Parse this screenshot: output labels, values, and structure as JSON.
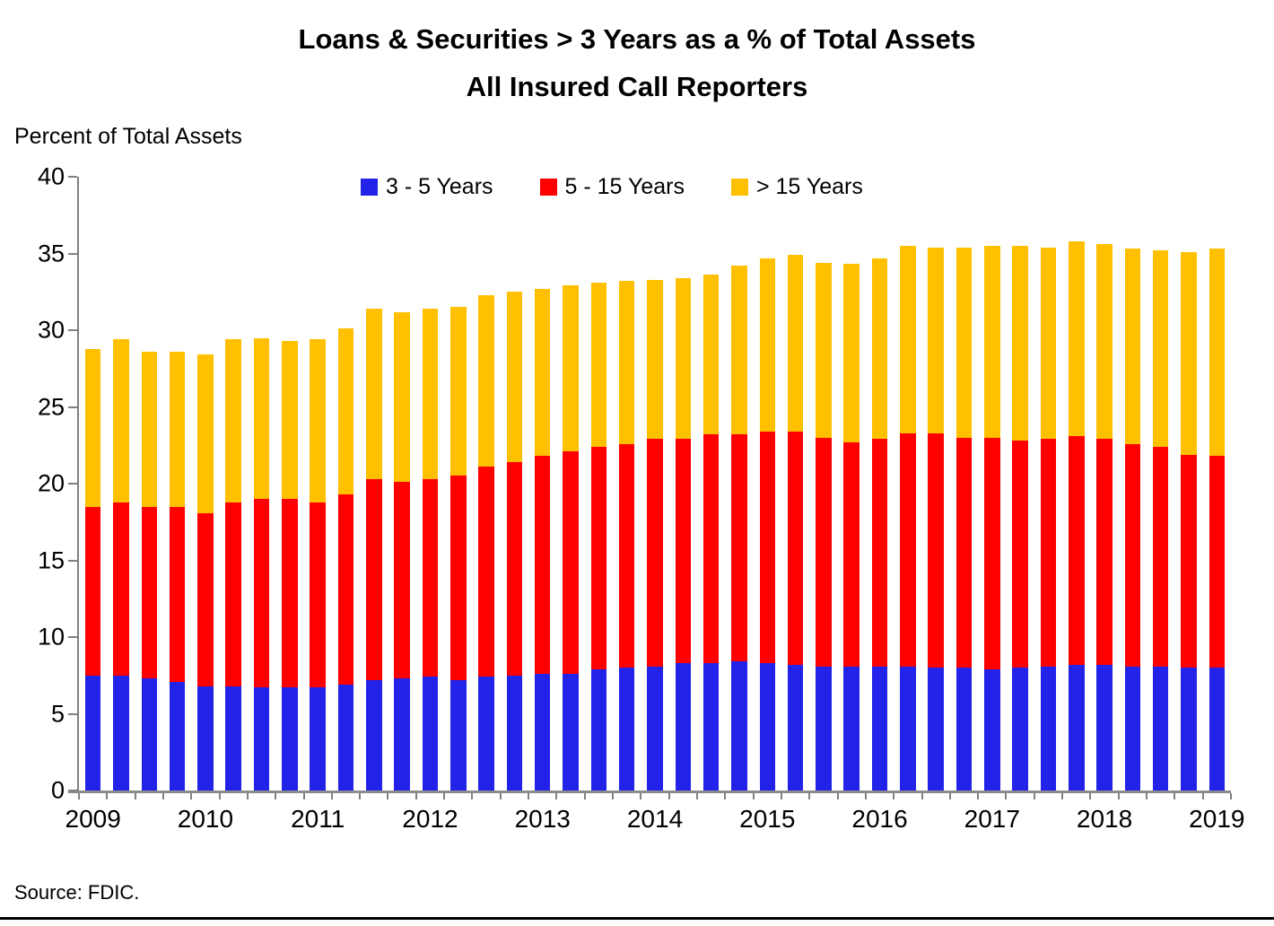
{
  "title": {
    "line1": "Loans & Securities > 3 Years as a % of Total Assets",
    "line2": "All Insured Call Reporters"
  },
  "y_axis_caption": "Percent of Total Assets",
  "source_note": "Source: FDIC.",
  "colors": {
    "blue": "#2222E8",
    "red": "#FF0000",
    "gold": "#FFC000",
    "axis_gray": "#808080"
  },
  "chart_data": {
    "type": "bar",
    "stacked": true,
    "title": "Loans & Securities > 3 Years as a % of Total Assets — All Insured Call Reporters",
    "xlabel": "",
    "ylabel": "Percent of Total Assets",
    "ylim": [
      0,
      40
    ],
    "y_ticks": [
      0,
      5,
      10,
      15,
      20,
      25,
      30,
      35,
      40
    ],
    "grid": false,
    "legend_position": "top",
    "x_year_labels": [
      "2009",
      "2010",
      "2011",
      "2012",
      "2013",
      "2014",
      "2015",
      "2016",
      "2017",
      "2018",
      "2019"
    ],
    "categories": [
      "2009 Q1",
      "2009 Q2",
      "2009 Q3",
      "2009 Q4",
      "2010 Q1",
      "2010 Q2",
      "2010 Q3",
      "2010 Q4",
      "2011 Q1",
      "2011 Q2",
      "2011 Q3",
      "2011 Q4",
      "2012 Q1",
      "2012 Q2",
      "2012 Q3",
      "2012 Q4",
      "2013 Q1",
      "2013 Q2",
      "2013 Q3",
      "2013 Q4",
      "2014 Q1",
      "2014 Q2",
      "2014 Q3",
      "2014 Q4",
      "2015 Q1",
      "2015 Q2",
      "2015 Q3",
      "2015 Q4",
      "2016 Q1",
      "2016 Q2",
      "2016 Q3",
      "2016 Q4",
      "2017 Q1",
      "2017 Q2",
      "2017 Q3",
      "2017 Q4",
      "2018 Q1",
      "2018 Q2",
      "2018 Q3",
      "2018 Q4",
      "2019 Q1"
    ],
    "series": [
      {
        "name": "3 - 5 Years",
        "color": "#2222E8",
        "values": [
          7.5,
          7.5,
          7.3,
          7.1,
          6.8,
          6.8,
          6.7,
          6.7,
          6.7,
          6.9,
          7.2,
          7.3,
          7.4,
          7.2,
          7.4,
          7.5,
          7.6,
          7.6,
          7.9,
          8.0,
          8.1,
          8.3,
          8.3,
          8.4,
          8.3,
          8.2,
          8.1,
          8.1,
          8.1,
          8.1,
          8.0,
          8.0,
          7.9,
          8.0,
          8.1,
          8.2,
          8.2,
          8.1,
          8.1,
          8.0,
          8.0
        ]
      },
      {
        "name": "5 - 15 Years",
        "color": "#FF0000",
        "values": [
          11.0,
          11.3,
          11.2,
          11.4,
          11.3,
          12.0,
          12.3,
          12.3,
          12.1,
          12.4,
          13.1,
          12.8,
          12.9,
          13.3,
          13.7,
          13.9,
          14.2,
          14.5,
          14.5,
          14.6,
          14.8,
          14.6,
          14.9,
          14.8,
          15.1,
          15.2,
          14.9,
          14.6,
          14.8,
          15.2,
          15.3,
          15.0,
          15.1,
          14.8,
          14.8,
          14.9,
          14.7,
          14.5,
          14.3,
          13.9,
          13.8
        ]
      },
      {
        "name": "> 15 Years",
        "color": "#FFC000",
        "values": [
          10.3,
          10.6,
          10.1,
          10.1,
          10.3,
          10.6,
          10.5,
          10.3,
          10.6,
          10.8,
          11.1,
          11.1,
          11.1,
          11.0,
          11.2,
          11.1,
          10.9,
          10.8,
          10.7,
          10.6,
          10.4,
          10.5,
          10.4,
          11.0,
          11.3,
          11.5,
          11.4,
          11.6,
          11.8,
          12.2,
          12.1,
          12.4,
          12.5,
          12.7,
          12.5,
          12.7,
          12.7,
          12.7,
          12.8,
          13.2,
          13.5
        ]
      }
    ]
  }
}
